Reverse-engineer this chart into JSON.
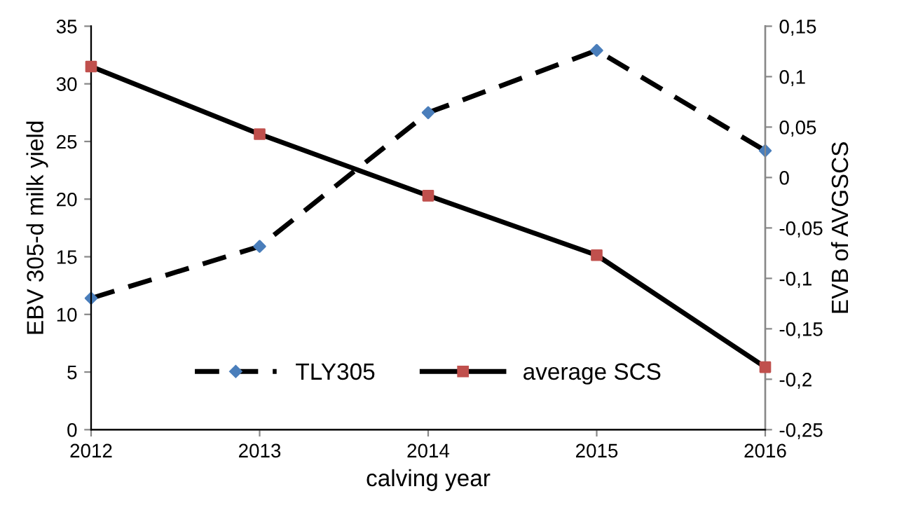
{
  "chart_data": {
    "type": "line",
    "xlabel": "calving year",
    "ylabel": "EBV 305-d milk yield",
    "y2label": "EVB of AVGSCS",
    "x": [
      2012,
      2013,
      2014,
      2015,
      2016
    ],
    "series": [
      {
        "name": "TLY305",
        "color": "#000000",
        "colors": [
          "#4a7ebb",
          "#4a7ebb",
          "#4a7ebb",
          "#4a7ebb",
          "#4a7ebb"
        ],
        "marker": "diamond",
        "line_style": "dashed",
        "values": [
          11.4,
          15.9,
          27.5,
          32.9,
          24.2
        ]
      },
      {
        "name": "average SCS",
        "color": "#000000",
        "colors": [
          "#c0504d",
          "#c0504d",
          "#c0504d",
          "#c0504d",
          "#c0504d"
        ],
        "marker": "square",
        "line_style": "solid",
        "axis": "y2",
        "values": [
          0.11,
          0.043,
          -0.018,
          -0.077,
          -0.188
        ]
      }
    ],
    "xlim": [
      2012,
      2016
    ],
    "xticks": [
      2012,
      2013,
      2014,
      2015,
      2016
    ],
    "ylim": [
      0,
      35
    ],
    "yticks": [
      0,
      5,
      10,
      15,
      20,
      25,
      30,
      35
    ],
    "y2lim": [
      -0.25,
      0.15
    ],
    "y2ticks": [
      {
        "value": -0.25,
        "label": "-0,25"
      },
      {
        "value": -0.2,
        "label": "-0,2"
      },
      {
        "value": -0.15,
        "label": "-0,15"
      },
      {
        "value": -0.1,
        "label": "-0,1"
      },
      {
        "value": -0.05,
        "label": "-0,05"
      },
      {
        "value": 0,
        "label": "0"
      },
      {
        "value": 0.05,
        "label": "0,05"
      },
      {
        "value": 0.1,
        "label": "0,1"
      },
      {
        "value": 0.15,
        "label": "0,15"
      }
    ],
    "grid": false,
    "legend": "bottom"
  }
}
